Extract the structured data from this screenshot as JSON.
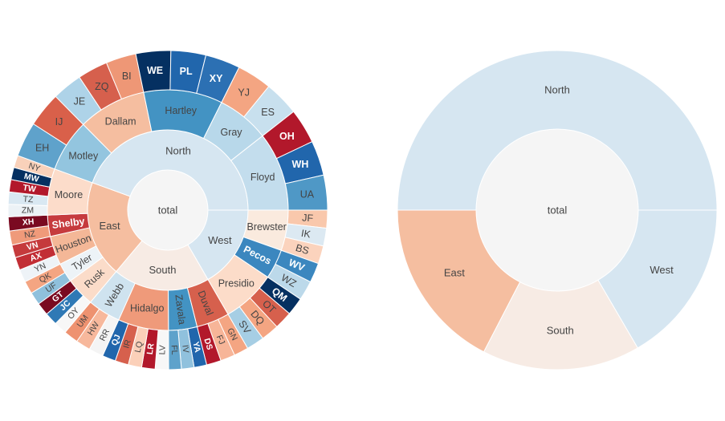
{
  "chart_data": [
    {
      "type": "sunburst",
      "root": "total",
      "regions": [
        {
          "label": "North",
          "color": "#d6e6f1",
          "children": [
            {
              "label": "Motley",
              "color": "#93c5df",
              "children": [
                {
                  "label": "EH",
                  "color": "#5fa2cb"
                },
                {
                  "label": "IJ",
                  "color": "#d9604a"
                }
              ]
            },
            {
              "label": "Dallam",
              "color": "#f5bea0",
              "children": [
                {
                  "label": "JE",
                  "color": "#aed3e8"
                },
                {
                  "label": "ZQ",
                  "color": "#d6604d"
                },
                {
                  "label": "BI",
                  "color": "#ee9776"
                }
              ]
            },
            {
              "label": "Hartley",
              "color": "#4393c3",
              "children": [
                {
                  "label": "WE",
                  "color": "#053061"
                },
                {
                  "label": "PL",
                  "color": "#2166ac"
                },
                {
                  "label": "XY",
                  "color": "#2c70b3"
                }
              ]
            },
            {
              "label": "Gray",
              "color": "#b8d8ea",
              "children": [
                {
                  "label": "YJ",
                  "color": "#f4a582"
                },
                {
                  "label": "ES",
                  "color": "#c8e0ee"
                }
              ]
            },
            {
              "label": "Floyd",
              "color": "#c3dded",
              "children": [
                {
                  "label": "OH",
                  "color": "#b2182b"
                },
                {
                  "label": "WH",
                  "color": "#2166ac"
                },
                {
                  "label": "UA",
                  "color": "#4f98c6"
                }
              ]
            }
          ]
        },
        {
          "label": "West",
          "color": "#d6e6f1",
          "children": [
            {
              "label": "Brewster",
              "color": "#faeade",
              "children": [
                {
                  "label": "JF",
                  "color": "#f9c8ac"
                },
                {
                  "label": "IK",
                  "color": "#dce9f2"
                },
                {
                  "label": "BS",
                  "color": "#fbd3bd"
                }
              ]
            },
            {
              "label": "Pecos",
              "color": "#3b87bf",
              "children": [
                {
                  "label": "WV",
                  "color": "#3b87bf"
                },
                {
                  "label": "WZ",
                  "color": "#bcd9ea"
                }
              ]
            },
            {
              "label": "Presidio",
              "color": "#fcdcc9",
              "children": [
                {
                  "label": "QM",
                  "color": "#053061"
                },
                {
                  "label": "OT",
                  "color": "#d6604d"
                },
                {
                  "label": "DQ",
                  "color": "#f4a582"
                },
                {
                  "label": "SV",
                  "color": "#a6cee4"
                }
              ]
            }
          ]
        },
        {
          "label": "South",
          "color": "#f7ebe4",
          "children": [
            {
              "label": "Duval",
              "color": "#d6604d",
              "children": [
                {
                  "label": "GN",
                  "color": "#f4a582"
                },
                {
                  "label": "FJ",
                  "color": "#f7b598"
                },
                {
                  "label": "DS",
                  "color": "#b2182b"
                }
              ]
            },
            {
              "label": "Zavala",
              "color": "#4393c3",
              "children": [
                {
                  "label": "YA",
                  "color": "#2166ac"
                },
                {
                  "label": "IV",
                  "color": "#90c1dd"
                },
                {
                  "label": "FL",
                  "color": "#5ea2cb"
                }
              ]
            },
            {
              "label": "Hidalgo",
              "color": "#ef9a7a",
              "children": [
                {
                  "label": "LV",
                  "color": "#f7f7f7"
                },
                {
                  "label": "LR",
                  "color": "#b2182b"
                },
                {
                  "label": "LQ",
                  "color": "#fbd0b9"
                },
                {
                  "label": "IR",
                  "color": "#d6604d"
                },
                {
                  "label": "QJ",
                  "color": "#2166ac"
                }
              ]
            },
            {
              "label": "Webb",
              "color": "#cfe3ef",
              "children": [
                {
                  "label": "RR",
                  "color": "#f4f4f4"
                },
                {
                  "label": "HW",
                  "color": "#f7b89c"
                },
                {
                  "label": "UM",
                  "color": "#ee9270"
                }
              ]
            }
          ]
        },
        {
          "label": "East",
          "color": "#f5bea0",
          "children": [
            {
              "label": "Rusk",
              "color": "#fbdcc9",
              "children": [
                {
                  "label": "OY",
                  "color": "#f7f7f7"
                },
                {
                  "label": "JC",
                  "color": "#2f79b5"
                },
                {
                  "label": "GT",
                  "color": "#7a0a21"
                }
              ]
            },
            {
              "label": "Tyler",
              "color": "#edf3f7",
              "children": [
                {
                  "label": "UF",
                  "color": "#8fc0dc"
                },
                {
                  "label": "QK",
                  "color": "#f4a582"
                }
              ]
            },
            {
              "label": "Houston",
              "color": "#f4b797",
              "children": [
                {
                  "label": "YN",
                  "color": "#eef3f7"
                },
                {
                  "label": "AX",
                  "color": "#c22e35"
                },
                {
                  "label": "VN",
                  "color": "#c53a3c"
                }
              ]
            },
            {
              "label": "Shelby",
              "color": "#c63b3e",
              "children": [
                {
                  "label": "NZ",
                  "color": "#ef9a7a"
                },
                {
                  "label": "XH",
                  "color": "#7a0a21"
                }
              ]
            },
            {
              "label": "Moore",
              "color": "#fcdcca",
              "children": [
                {
                  "label": "ZM",
                  "color": "#ecf2f6"
                },
                {
                  "label": "TZ",
                  "color": "#d9e8f2"
                },
                {
                  "label": "TW",
                  "color": "#b2182b"
                },
                {
                  "label": "MW",
                  "color": "#053061"
                },
                {
                  "label": "NY",
                  "color": "#f9d1ba"
                }
              ]
            }
          ]
        }
      ]
    },
    {
      "type": "sunburst",
      "root": "total",
      "regions": [
        {
          "label": "North",
          "value": 0.5,
          "color": "#d6e6f1"
        },
        {
          "label": "West",
          "value": 0.166,
          "color": "#d6e6f1"
        },
        {
          "label": "South",
          "value": 0.16,
          "color": "#f7ebe4"
        },
        {
          "label": "East",
          "value": 0.174,
          "color": "#f5bea0"
        }
      ]
    }
  ]
}
